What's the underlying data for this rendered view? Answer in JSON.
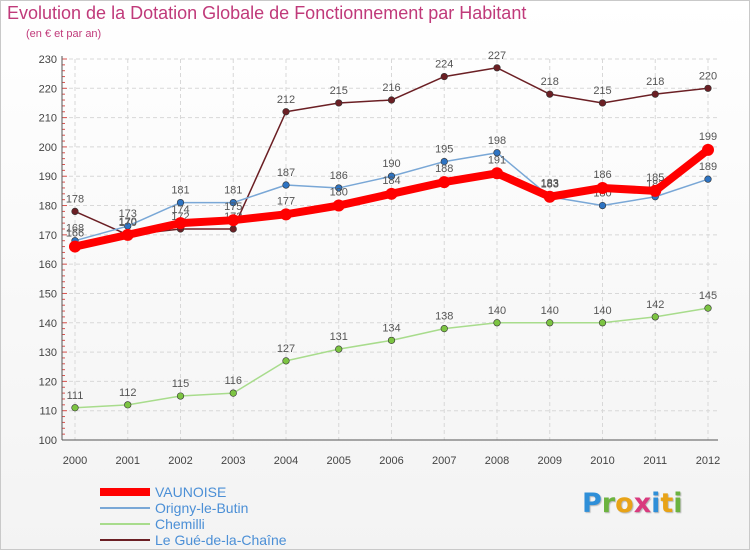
{
  "title": "Evolution de la Dotation Globale de Fonctionnement par Habitant",
  "subtitle": "(en € et par an)",
  "logo": {
    "text": "Proxiti",
    "letter_colors": [
      "#2f8fd8",
      "#6cb33f",
      "#e8a317",
      "#d93a7e",
      "#2f8fd8",
      "#e8a317",
      "#6cb33f"
    ]
  },
  "chart_data": {
    "type": "line",
    "title": "Evolution de la Dotation Globale de Fonctionnement par Habitant",
    "subtitle": "(en € et par an)",
    "categories": [
      "2000",
      "2001",
      "2002",
      "2003",
      "2004",
      "2005",
      "2006",
      "2007",
      "2008",
      "2009",
      "2010",
      "2011",
      "2012"
    ],
    "ylim": [
      100,
      230
    ],
    "yticks": [
      100,
      110,
      120,
      130,
      140,
      150,
      160,
      170,
      180,
      190,
      200,
      210,
      220,
      230
    ],
    "grid": true,
    "legend": "bottom-left",
    "series": [
      {
        "name": "Le Gué-de-la-Chaîne",
        "color": "#6b1f24",
        "dot_color": "#6b1f24",
        "weight": "thin",
        "values": [
          178,
          170,
          172,
          172,
          212,
          215,
          216,
          224,
          227,
          218,
          215,
          218,
          220
        ],
        "labels": [
          "178",
          "170",
          "172",
          "172",
          "212",
          "215",
          "216",
          "224",
          "227",
          "218",
          "215",
          "218",
          "220"
        ]
      },
      {
        "name": "Chemilli",
        "color": "#a8dc8c",
        "dot_color": "#7cc442",
        "weight": "thin",
        "values": [
          111,
          112,
          115,
          116,
          127,
          131,
          134,
          138,
          140,
          140,
          140,
          142,
          145
        ],
        "labels": [
          "111",
          "112",
          "115",
          "116",
          "127",
          "131",
          "134",
          "138",
          "140",
          "140",
          "140",
          "142",
          "145"
        ]
      },
      {
        "name": "Origny-le-Butin",
        "color": "#79a7d6",
        "dot_color": "#2e74c3",
        "weight": "thin",
        "values": [
          168,
          173,
          181,
          181,
          187,
          186,
          190,
          195,
          198,
          183,
          180,
          183,
          189
        ],
        "labels": [
          "168",
          "173",
          "181",
          "181",
          "187",
          "186",
          "190",
          "195",
          "198",
          "183",
          "180",
          "183",
          "189"
        ]
      },
      {
        "name": "VAUNOISE",
        "color": "#ff0000",
        "dot_color": "#ff0000",
        "weight": "thick",
        "values": [
          166,
          170,
          174,
          175,
          177,
          180,
          184,
          188,
          191,
          183,
          186,
          185,
          199
        ],
        "labels": [
          "166",
          "170",
          "174",
          "175",
          "177",
          "180",
          "184",
          "188",
          "191",
          "183",
          "186",
          "185",
          "199"
        ]
      }
    ],
    "legend_order": [
      "VAUNOISE",
      "Origny-le-Butin",
      "Chemilli",
      "Le Gué-de-la-Chaîne"
    ]
  }
}
